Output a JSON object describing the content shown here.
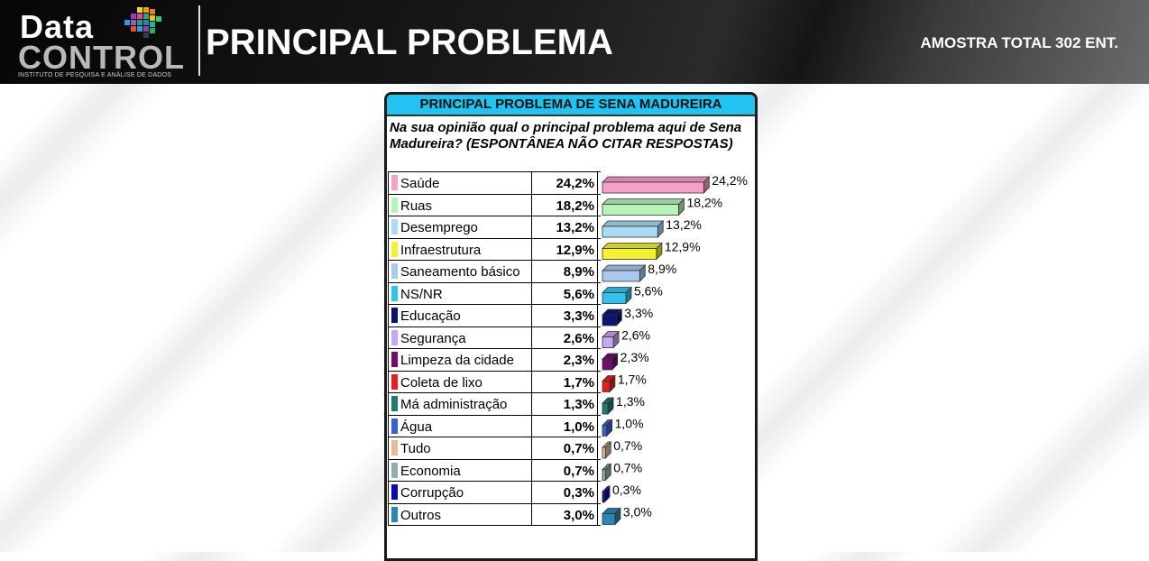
{
  "header": {
    "logo_top": "Data",
    "logo_bottom": "CONTROL",
    "logo_tagline": "INSTITUTO DE PESQUISA E ANÁLISE DE DADOS",
    "title": "PRINCIPAL PROBLEMA",
    "sample": "AMOSTRA TOTAL 302 ENT."
  },
  "panel": {
    "title": "PRINCIPAL PROBLEMA DE SENA MADUREIRA",
    "question": "Na sua opinião qual o principal problema aqui de Sena Madureira? (ESPONTÂNEA NÃO CITAR RESPOSTAS)"
  },
  "chart_data": {
    "type": "bar",
    "orientation": "horizontal",
    "title": "PRINCIPAL PROBLEMA DE SENA MADUREIRA",
    "unit": "%",
    "categories": [
      "Saúde",
      "Ruas",
      "Desemprego",
      "Infraestrutura",
      "Saneamento básico",
      "NS/NR",
      "Educação",
      "Segurança",
      "Limpeza da cidade",
      "Coleta de lixo",
      "Má administração",
      "Água",
      "Tudo",
      "Economia",
      "Corrupção",
      "Outros"
    ],
    "values": [
      24.2,
      18.2,
      13.2,
      12.9,
      8.9,
      5.6,
      3.3,
      2.6,
      2.3,
      1.7,
      1.3,
      1.0,
      0.7,
      0.7,
      0.3,
      3.0
    ],
    "labels": [
      "24,2%",
      "18,2%",
      "13,2%",
      "12,9%",
      "8,9%",
      "5,6%",
      "3,3%",
      "2,6%",
      "2,3%",
      "1,7%",
      "1,3%",
      "1,0%",
      "0,7%",
      "0,7%",
      "0,3%",
      "3,0%"
    ],
    "colors": [
      "#f7a1c9",
      "#b8f2bd",
      "#a8dcf5",
      "#f2f233",
      "#a9c8ec",
      "#33c2ee",
      "#0c1470",
      "#caa6ee",
      "#6e0f6e",
      "#e61e1e",
      "#1f7a70",
      "#3b5fd0",
      "#e8b99a",
      "#8fb0ad",
      "#0a0ab0",
      "#2a86b4"
    ],
    "xlim": [
      0,
      25
    ],
    "grid": false,
    "legend": "none"
  }
}
